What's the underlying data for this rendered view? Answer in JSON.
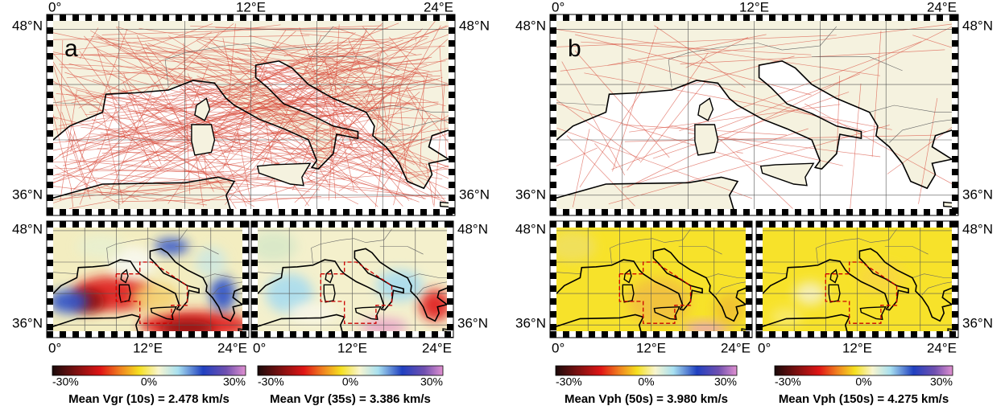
{
  "top_maps": [
    {
      "label": "a",
      "top_labels": [
        "0°",
        "12°E",
        "24°E"
      ],
      "left_labels": [
        "48°N",
        "36°N"
      ],
      "right_labels": [
        "48°N",
        "36°N"
      ]
    },
    {
      "label": "b",
      "top_labels": [
        "0°",
        "12°E",
        "24°E"
      ],
      "left_labels": [
        "48°N",
        "36°N"
      ],
      "right_labels": [
        "48°N",
        "36°N"
      ]
    }
  ],
  "bottom_maps": [
    {
      "left_labels": [
        "48°N",
        "36°N"
      ],
      "bottom_labels": [
        "0°",
        "12°E",
        "24°E"
      ],
      "colorbar_labels": [
        "-30%",
        "0%",
        "30%"
      ],
      "caption": "Mean Vgr (10s) = 2.478 km/s"
    },
    {
      "right_labels": [
        "48°N",
        "36°N"
      ],
      "bottom_labels": [
        "0°",
        "12°E",
        "24°E"
      ],
      "colorbar_labels": [
        "-30%",
        "0%",
        "30%"
      ],
      "caption": "Mean Vgr (35s) = 3.386 km/s"
    },
    {
      "left_labels": [
        "48°N",
        "36°N"
      ],
      "bottom_labels": [
        "0°",
        "12°E",
        "24°E"
      ],
      "colorbar_labels": [
        "-30%",
        "0%",
        "30%"
      ],
      "caption": "Mean Vph (50s) = 3.980 km/s"
    },
    {
      "right_labels": [
        "48°N",
        "36°N"
      ],
      "bottom_labels": [
        "0°",
        "12°E",
        "24°E"
      ],
      "colorbar_labels": [
        "-30%",
        "0%",
        "30%"
      ],
      "caption": "Mean Vph (150s) = 4.275 km/s"
    }
  ]
}
